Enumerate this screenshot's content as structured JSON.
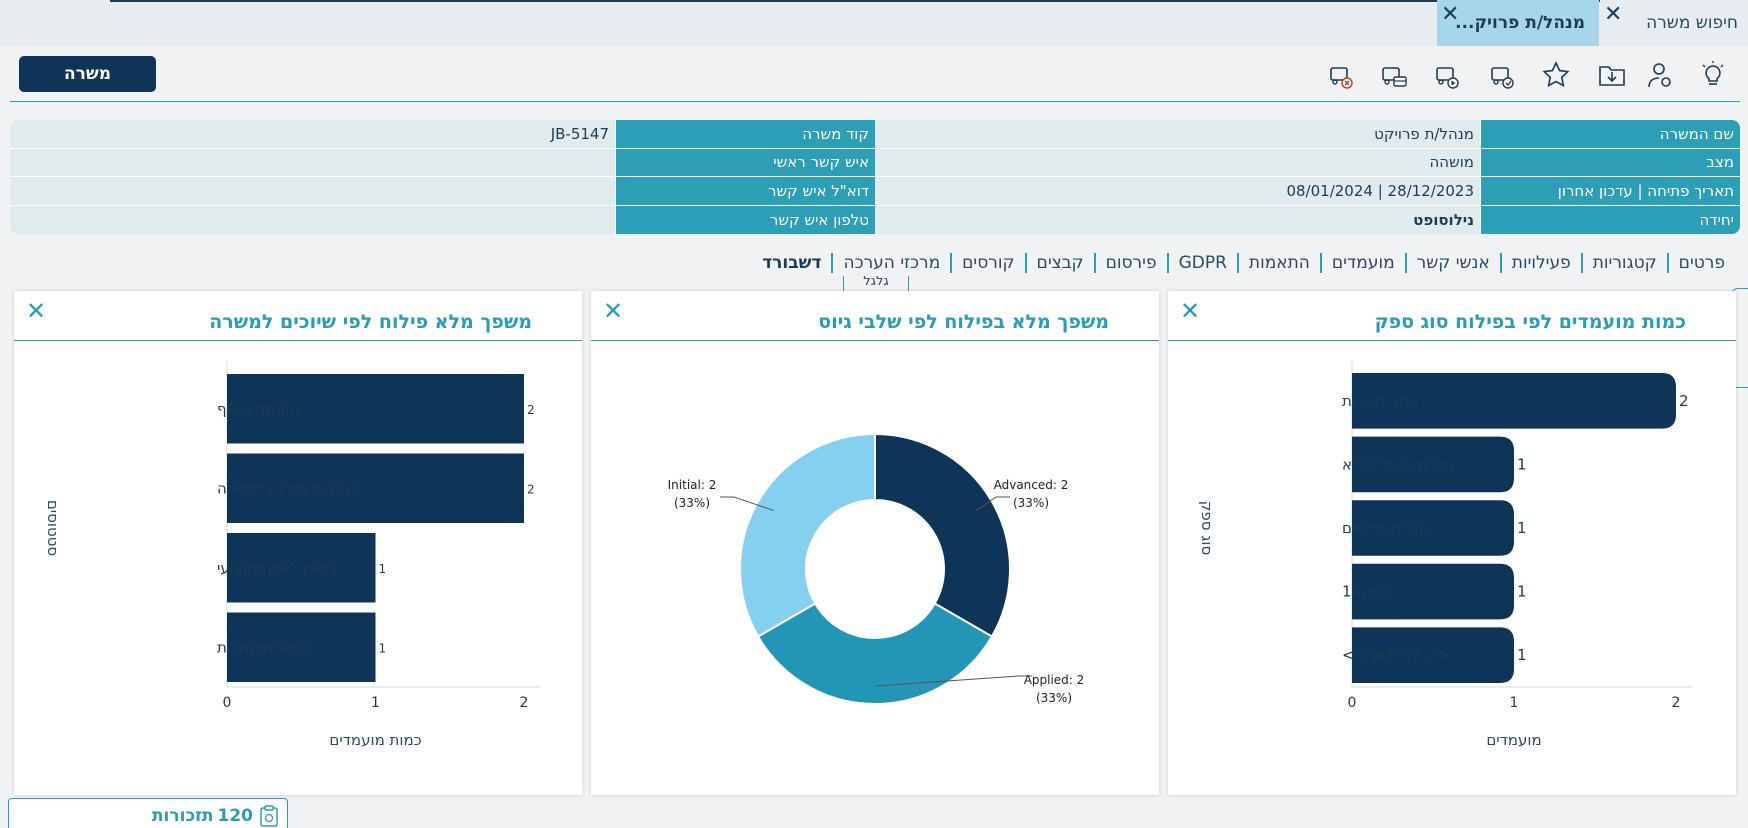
{
  "tabs": {
    "search_label": "חיפוש משרה",
    "active_label": "מנהל/ת פרויק..."
  },
  "toolbar": {
    "job_button": "משרה",
    "icons": [
      "lightbulb-icon",
      "user-settings-icon",
      "folder-download-icon",
      "star-icon",
      "car-check-icon",
      "car-play-icon",
      "car-bus-icon",
      "car-cancel-icon"
    ]
  },
  "info": {
    "job_name_label": "שם המשרה",
    "job_name_value": "מנהל/ת פרויקט",
    "job_code_label": "קוד משרה",
    "job_code_value": "JB-5147",
    "status_label": "מצב",
    "status_value": "מושהה",
    "main_contact_label": "איש קשר ראשי",
    "main_contact_value": "",
    "dates_label": "תאריך פתיחה | עדכון אחרון",
    "dates_value": "28/12/2023 | 08/01/2024",
    "contact_email_label": "דוא\"ל איש קשר",
    "contact_email_value": "",
    "unit_label": "יחידה",
    "unit_value": "נילוסופט",
    "contact_phone_label": "טלפון איש קשר",
    "contact_phone_value": ""
  },
  "nav": {
    "items": [
      "פרטים",
      "קטגוריות",
      "פעילויות",
      "אנשי קשר",
      "מועמדים",
      "התאמות",
      "GDPR",
      "פירסום",
      "קבצים",
      "קורסים",
      "מרכזי הערכה",
      "דשבורד"
    ],
    "hidden_button": "גלגל"
  },
  "panels": {
    "supplier": {
      "title": "כמות מועמדים לפי בפילוח סוג ספק",
      "close": "✕"
    },
    "recruit_stages": {
      "title": "משפך מלא בפילוח לפי שלבי גיוס",
      "close": "✕"
    },
    "status_funnel": {
      "title": "משפך מלא פילוח לפי שיוכים למשרה",
      "close": "✕"
    }
  },
  "chart_data": [
    {
      "type": "bar",
      "orientation": "horizontal",
      "title": "כמות מועמדים לפי בפילוח סוג ספק",
      "categories": [
        "אתר משרות",
        "חברת השמה/כ\"א",
        "חברת פירסום",
        "בדיקה1",
        "<< לא ידוע >>"
      ],
      "values": [
        2,
        1,
        1,
        1,
        1
      ],
      "xlabel": "מועמדים",
      "ylabel": "סוג ספק",
      "xlim": [
        0,
        2
      ],
      "xticks": [
        "0",
        "1",
        "2"
      ],
      "color": "#0e3458"
    },
    {
      "type": "pie",
      "title": "משפך מלא בפילוח לפי שלבי גיוס",
      "categories": [
        "Advanced",
        "Applied",
        "Initial"
      ],
      "values": [
        2,
        2,
        2
      ],
      "labels": [
        "Advanced: 2",
        "Applied: 2",
        "Initial: 2"
      ],
      "percents": [
        "(33%)",
        "(33%)",
        "(33%)"
      ],
      "colors": [
        "#0e3458",
        "#2396b8",
        "#86d0ef"
      ],
      "donut": true
    },
    {
      "type": "bar",
      "orientation": "horizontal",
      "title": "משפך מלא פילוח לפי שיוכים למשרה",
      "categories": [
        "מועמד נחשף",
        "הגיש מועמדות למשרה",
        "רואיין ראיון מקצועי",
        "הגיש מועמדות"
      ],
      "values": [
        2,
        2,
        1,
        1
      ],
      "value_labels": [
        "2",
        "2",
        "1",
        "1"
      ],
      "xlabel": "כמות מועמדים",
      "ylabel": "סטטוסים",
      "xlim": [
        0,
        2
      ],
      "xticks": [
        "0",
        "1",
        "2"
      ],
      "color": "#0e3458"
    }
  ],
  "footer": {
    "reminders_count": "120",
    "reminders_label": "תזכורות"
  }
}
